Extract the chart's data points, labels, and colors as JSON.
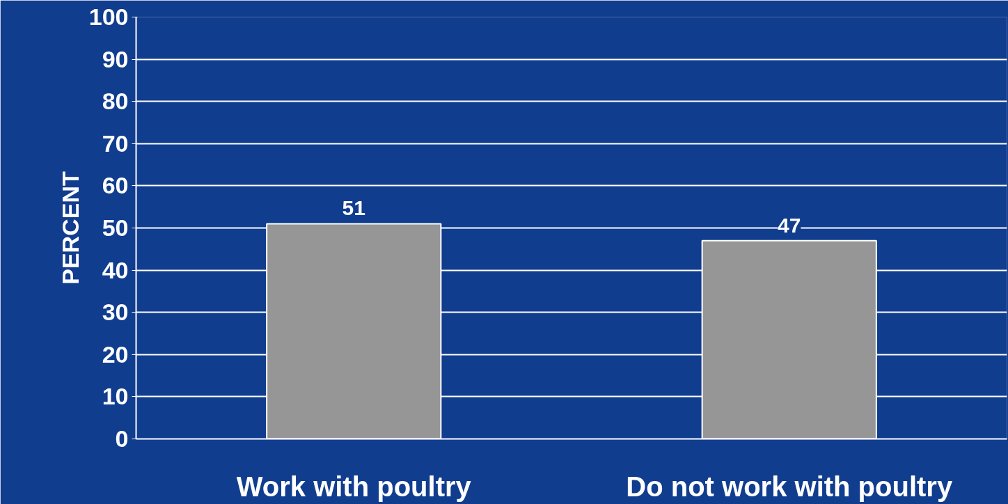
{
  "chart_data": {
    "type": "bar",
    "categories": [
      "Work with poultry",
      "Do not work with poultry"
    ],
    "values": [
      51,
      47
    ],
    "color": "#969696",
    "ylabel": "PERCENT",
    "ylim": [
      0,
      100
    ],
    "yticks": [
      0,
      10,
      20,
      30,
      40,
      50,
      60,
      70,
      80,
      90,
      100
    ],
    "grid": "y",
    "data_labels": true
  }
}
